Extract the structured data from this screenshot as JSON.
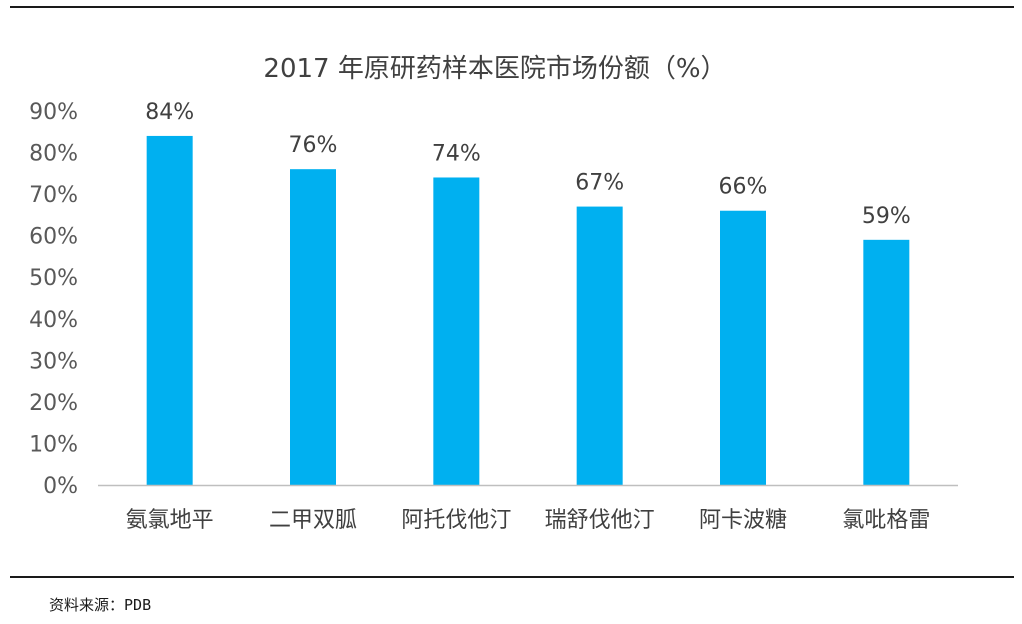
{
  "chart_data": {
    "type": "bar",
    "title": "2017 年原研药样本医院市场份额（%）",
    "categories": [
      "氨氯地平",
      "二甲双胍",
      "阿托伐他汀",
      "瑞舒伐他汀",
      "阿卡波糖",
      "氯吡格雷"
    ],
    "values": [
      84,
      76,
      74,
      67,
      66,
      59
    ],
    "value_labels": [
      "84%",
      "76%",
      "74%",
      "67%",
      "66%",
      "59%"
    ],
    "yticks": [
      "0%",
      "10%",
      "20%",
      "30%",
      "40%",
      "50%",
      "60%",
      "70%",
      "80%",
      "90%"
    ],
    "ylim": [
      0,
      90
    ],
    "xlabel": "",
    "ylabel": "",
    "grid": false,
    "legend": "none",
    "bar_color": "#00B0F0"
  },
  "source": {
    "label": "资料来源：",
    "value": "PDB"
  }
}
